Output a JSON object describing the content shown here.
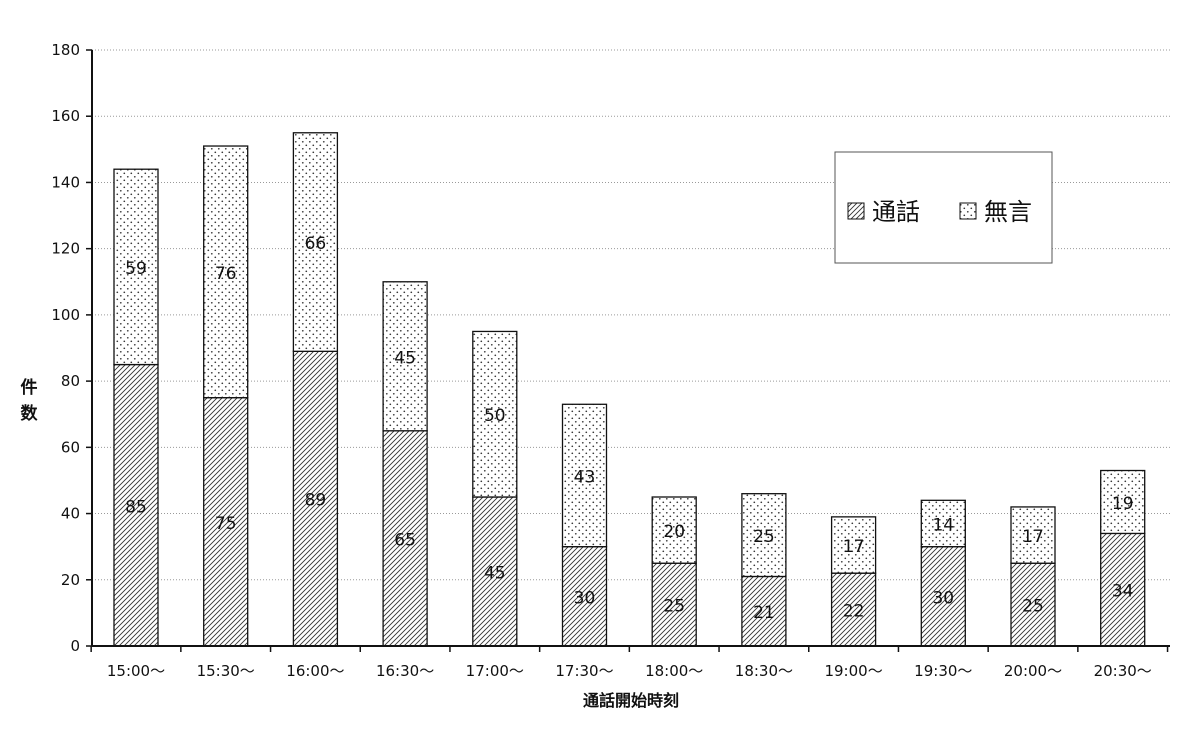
{
  "chart_data": {
    "type": "bar",
    "stacked": true,
    "categories": [
      "15:00～",
      "15:30～",
      "16:00～",
      "16:30～",
      "17:00～",
      "17:30～",
      "18:00～",
      "18:30～",
      "19:00～",
      "19:30～",
      "20:00～",
      "20:30～"
    ],
    "series": [
      {
        "name": "通話",
        "values": [
          85,
          75,
          89,
          65,
          45,
          30,
          25,
          21,
          22,
          30,
          25,
          34
        ]
      },
      {
        "name": "無言",
        "values": [
          59,
          76,
          66,
          45,
          50,
          43,
          20,
          25,
          17,
          14,
          17,
          19
        ]
      }
    ],
    "xlabel": "通話開始時刻",
    "ylabel": "件数",
    "ylim": [
      0,
      180
    ],
    "yticks": [
      0,
      20,
      40,
      60,
      80,
      100,
      120,
      140,
      160,
      180
    ],
    "grid": true,
    "legend_position": "top-right"
  }
}
